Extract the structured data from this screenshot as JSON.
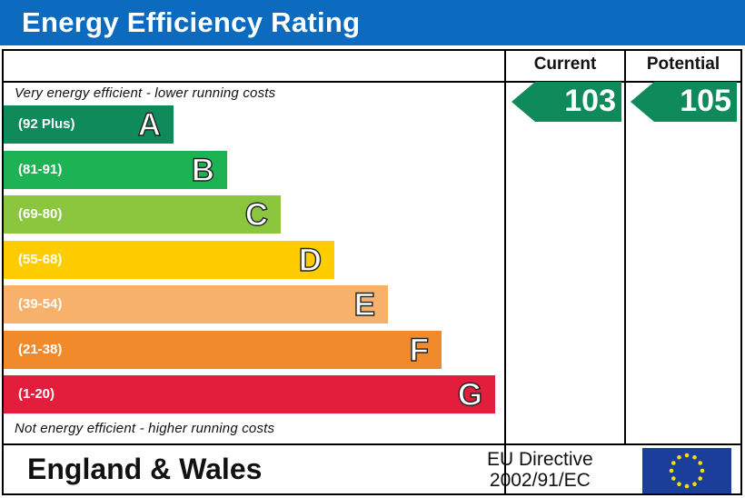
{
  "header": {
    "title": "Energy Efficiency Rating",
    "bg_color": "#0c6bbf"
  },
  "columns": {
    "current": "Current",
    "potential": "Potential"
  },
  "notes": {
    "top": "Very energy efficient - lower running costs",
    "bottom": "Not energy efficient - higher running costs"
  },
  "footer": {
    "region": "England & Wales",
    "directive_line1": "EU Directive",
    "directive_line2": "2002/91/EC",
    "flag_icon": "eu-flag-icon"
  },
  "chart_data": {
    "type": "bar",
    "title": "Energy Efficiency Rating",
    "categories": [
      "A",
      "B",
      "C",
      "D",
      "E",
      "F",
      "G"
    ],
    "ranges": [
      "(92 Plus)",
      "(81-91)",
      "(69-80)",
      "(55-68)",
      "(39-54)",
      "(21-38)",
      "(1-20)"
    ],
    "values": [
      1,
      2,
      3,
      4,
      5,
      6,
      7
    ],
    "colors": [
      "#0f8a5a",
      "#1db355",
      "#8cc63f",
      "#ffcc00",
      "#f7b16b",
      "#f08a2a",
      "#e31e3c"
    ],
    "current": {
      "value": 103,
      "band": "A",
      "color": "#0f8a5a"
    },
    "potential": {
      "value": 105,
      "band": "A",
      "color": "#0f8a5a"
    }
  }
}
